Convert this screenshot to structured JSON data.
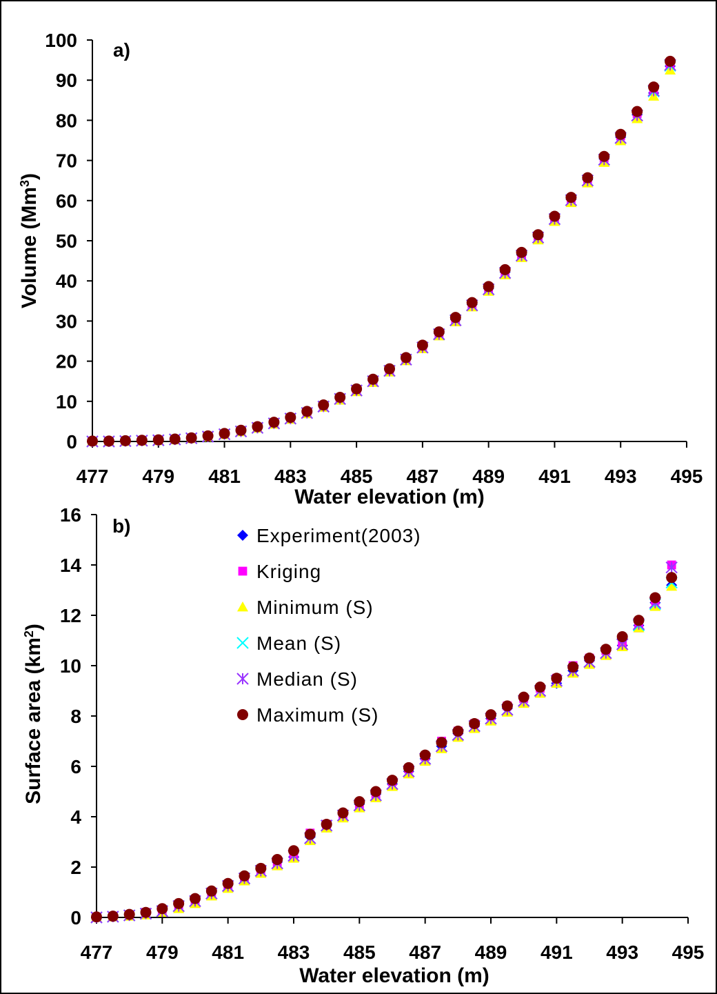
{
  "chart_data": [
    {
      "type": "scatter",
      "panel_label": "a)",
      "xlabel": "Water elevation (m)",
      "ylabel_main": "Volume (Mm",
      "ylabel_sup": "3",
      "ylabel_tail": ")",
      "xlim": [
        477,
        495
      ],
      "ylim": [
        0,
        100
      ],
      "xticks": [
        "477",
        "479",
        "481",
        "483",
        "485",
        "487",
        "489",
        "491",
        "493",
        "495"
      ],
      "yticks": [
        "0",
        "10",
        "20",
        "30",
        "40",
        "50",
        "60",
        "70",
        "80",
        "90",
        "100"
      ],
      "x": [
        477,
        477.5,
        478,
        478.5,
        479,
        479.5,
        480,
        480.5,
        481,
        481.5,
        482,
        482.5,
        483,
        483.5,
        484,
        484.5,
        485,
        485.5,
        486,
        486.5,
        487,
        487.5,
        488,
        488.5,
        489,
        489.5,
        490,
        490.5,
        491,
        491.5,
        492,
        492.5,
        493,
        493.5,
        494,
        494.5
      ],
      "series": [
        {
          "key": "experiment",
          "values": [
            0.0,
            0.0,
            0.1,
            0.2,
            0.3,
            0.5,
            0.8,
            1.3,
            1.9,
            2.6,
            3.5,
            4.6,
            5.8,
            7.2,
            8.8,
            10.7,
            12.8,
            15.2,
            17.8,
            20.6,
            23.6,
            26.9,
            30.4,
            34.1,
            38.1,
            42.2,
            46.5,
            51.0,
            55.6,
            60.3,
            65.2,
            70.4,
            75.8,
            81.4,
            86.8,
            93.5
          ]
        },
        {
          "key": "kriging",
          "values": [
            0.0,
            0.0,
            0.1,
            0.2,
            0.3,
            0.5,
            0.8,
            1.3,
            1.9,
            2.6,
            3.5,
            4.6,
            5.8,
            7.2,
            8.8,
            10.7,
            12.8,
            15.2,
            17.8,
            20.6,
            23.7,
            27.0,
            30.5,
            34.2,
            38.2,
            42.3,
            46.6,
            51.1,
            55.7,
            60.4,
            65.4,
            70.6,
            76.1,
            81.7,
            87.6,
            94.0
          ]
        },
        {
          "key": "minimum",
          "values": [
            0.0,
            0.0,
            0.0,
            0.1,
            0.2,
            0.4,
            0.7,
            1.1,
            1.7,
            2.4,
            3.3,
            4.3,
            5.5,
            6.9,
            8.5,
            10.3,
            12.4,
            14.7,
            17.3,
            20.1,
            23.1,
            26.3,
            29.8,
            33.5,
            37.4,
            41.5,
            45.8,
            50.2,
            54.8,
            59.5,
            64.4,
            69.5,
            74.9,
            80.4,
            86.0,
            92.5
          ]
        },
        {
          "key": "mean",
          "values": [
            0.0,
            0.0,
            0.1,
            0.2,
            0.3,
            0.5,
            0.8,
            1.2,
            1.8,
            2.5,
            3.4,
            4.5,
            5.7,
            7.1,
            8.7,
            10.6,
            12.7,
            15.0,
            17.6,
            20.4,
            23.4,
            26.7,
            30.2,
            33.9,
            37.9,
            42.0,
            46.3,
            50.8,
            55.4,
            60.1,
            65.0,
            70.2,
            75.6,
            81.2,
            87.2,
            93.6
          ]
        },
        {
          "key": "median",
          "values": [
            0.0,
            0.0,
            0.1,
            0.2,
            0.3,
            0.5,
            0.8,
            1.2,
            1.8,
            2.5,
            3.4,
            4.5,
            5.7,
            7.1,
            8.7,
            10.6,
            12.7,
            15.0,
            17.6,
            20.4,
            23.4,
            26.7,
            30.2,
            33.9,
            37.9,
            42.0,
            46.3,
            50.8,
            55.4,
            60.1,
            65.0,
            70.2,
            75.6,
            81.2,
            87.4,
            93.8
          ]
        },
        {
          "key": "maximum",
          "values": [
            0.1,
            0.1,
            0.2,
            0.3,
            0.4,
            0.6,
            0.9,
            1.4,
            2.0,
            2.8,
            3.7,
            4.8,
            6.0,
            7.5,
            9.1,
            11.0,
            13.1,
            15.5,
            18.1,
            20.9,
            24.0,
            27.3,
            30.9,
            34.6,
            38.6,
            42.8,
            47.1,
            51.5,
            56.1,
            60.8,
            65.7,
            71.0,
            76.5,
            82.2,
            88.3,
            94.7
          ]
        }
      ]
    },
    {
      "type": "scatter",
      "panel_label": "b)",
      "xlabel": "Water elevation (m)",
      "ylabel_main": "Surface area (km",
      "ylabel_sup": "2",
      "ylabel_tail": ")",
      "xlim": [
        477,
        495
      ],
      "ylim": [
        0,
        16
      ],
      "xticks": [
        "477",
        "479",
        "481",
        "483",
        "485",
        "487",
        "489",
        "491",
        "493",
        "495"
      ],
      "yticks": [
        "0",
        "2",
        "4",
        "6",
        "8",
        "10",
        "12",
        "14",
        "16"
      ],
      "x": [
        477,
        477.5,
        478,
        478.5,
        479,
        479.5,
        480,
        480.5,
        481,
        481.5,
        482,
        482.5,
        483,
        483.5,
        484,
        484.5,
        485,
        485.5,
        486,
        486.5,
        487,
        487.5,
        488,
        488.5,
        489,
        489.5,
        490,
        490.5,
        491,
        491.5,
        492,
        492.5,
        493,
        493.5,
        494,
        494.5
      ],
      "series": [
        {
          "key": "experiment",
          "values": [
            0.0,
            0.05,
            0.1,
            0.2,
            0.3,
            0.5,
            0.7,
            1.0,
            1.3,
            1.6,
            1.9,
            2.2,
            2.4,
            3.2,
            3.7,
            4.1,
            4.5,
            4.9,
            5.3,
            5.8,
            6.3,
            6.8,
            7.3,
            7.6,
            7.9,
            8.3,
            8.7,
            9.1,
            9.3,
            9.8,
            10.2,
            10.6,
            10.8,
            11.6,
            12.5,
            13.2
          ]
        },
        {
          "key": "kriging",
          "values": [
            0.0,
            0.05,
            0.1,
            0.2,
            0.3,
            0.5,
            0.7,
            1.0,
            1.3,
            1.6,
            1.9,
            2.2,
            2.4,
            3.35,
            3.7,
            4.1,
            4.5,
            4.9,
            5.4,
            5.9,
            6.4,
            7.0,
            7.4,
            7.7,
            8.0,
            8.4,
            8.7,
            9.1,
            9.5,
            10.0,
            10.3,
            10.6,
            10.9,
            11.5,
            12.6,
            14.0
          ]
        },
        {
          "key": "minimum",
          "values": [
            0.0,
            0.02,
            0.05,
            0.1,
            0.2,
            0.35,
            0.55,
            0.85,
            1.15,
            1.45,
            1.75,
            2.05,
            2.35,
            3.05,
            3.55,
            3.95,
            4.35,
            4.75,
            5.2,
            5.7,
            6.2,
            6.7,
            7.15,
            7.5,
            7.8,
            8.15,
            8.5,
            8.9,
            9.3,
            9.7,
            10.05,
            10.4,
            10.75,
            11.5,
            12.35,
            13.15
          ]
        },
        {
          "key": "mean",
          "values": [
            0.0,
            0.03,
            0.08,
            0.15,
            0.25,
            0.45,
            0.65,
            0.95,
            1.25,
            1.55,
            1.85,
            2.15,
            2.45,
            3.15,
            3.65,
            4.05,
            4.45,
            4.85,
            5.3,
            5.8,
            6.3,
            6.8,
            7.25,
            7.6,
            7.9,
            8.25,
            8.6,
            9.0,
            9.4,
            9.8,
            10.15,
            10.5,
            10.85,
            11.6,
            12.45,
            13.3
          ]
        },
        {
          "key": "median",
          "values": [
            0.0,
            0.03,
            0.08,
            0.15,
            0.25,
            0.45,
            0.65,
            0.95,
            1.25,
            1.55,
            1.85,
            2.15,
            2.45,
            3.15,
            3.65,
            4.05,
            4.45,
            4.85,
            5.3,
            5.8,
            6.3,
            6.8,
            7.25,
            7.6,
            7.9,
            8.25,
            8.6,
            9.0,
            9.4,
            9.8,
            10.15,
            10.5,
            10.85,
            11.65,
            12.5,
            13.9
          ]
        },
        {
          "key": "maximum",
          "values": [
            0.02,
            0.05,
            0.12,
            0.2,
            0.35,
            0.55,
            0.75,
            1.05,
            1.35,
            1.65,
            1.95,
            2.3,
            2.65,
            3.3,
            3.7,
            4.15,
            4.6,
            5.0,
            5.45,
            5.95,
            6.45,
            6.95,
            7.4,
            7.7,
            8.05,
            8.4,
            8.75,
            9.15,
            9.5,
            9.95,
            10.3,
            10.65,
            11.15,
            11.8,
            12.7,
            13.5
          ]
        }
      ]
    }
  ],
  "legend": {
    "placement": "upper-left of panel b",
    "items": [
      {
        "key": "experiment",
        "label": "Experiment(2003)",
        "marker": "diamond",
        "color": "#0000ff"
      },
      {
        "key": "kriging",
        "label": "Kriging",
        "marker": "square",
        "color": "#ff00ff"
      },
      {
        "key": "minimum",
        "label": "Minimum (S)",
        "marker": "triangle",
        "color": "#ffff00"
      },
      {
        "key": "mean",
        "label": "Mean (S)",
        "marker": "x",
        "color": "#00ffff"
      },
      {
        "key": "median",
        "label": "Median (S)",
        "marker": "star",
        "color": "#9933ff"
      },
      {
        "key": "maximum",
        "label": "Maximum (S)",
        "marker": "circle",
        "color": "#800000"
      }
    ]
  }
}
